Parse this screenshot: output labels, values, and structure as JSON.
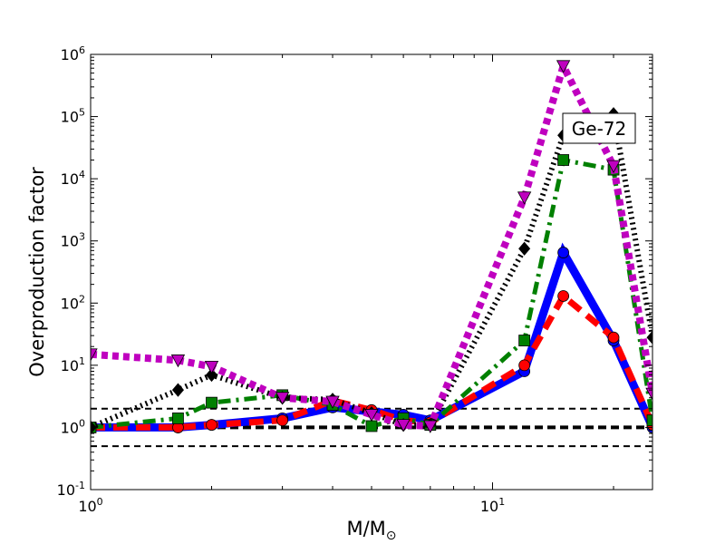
{
  "chart_data": {
    "type": "line",
    "title": "",
    "xlabel": "M/M",
    "xlabel_sub": "⊙",
    "ylabel": "Overproduction factor",
    "xscale": "log",
    "yscale": "log",
    "xlim": [
      1,
      25
    ],
    "ylim": [
      0.1,
      1000000
    ],
    "grid": false,
    "legend": "none",
    "x_ticks": [
      {
        "value": 1,
        "base": "10",
        "exp": "0"
      },
      {
        "value": 10,
        "base": "10",
        "exp": "1"
      }
    ],
    "y_ticks": [
      {
        "value": 0.1,
        "base": "10",
        "exp": "-1"
      },
      {
        "value": 1,
        "base": "10",
        "exp": "0"
      },
      {
        "value": 10,
        "base": "10",
        "exp": "1"
      },
      {
        "value": 100,
        "base": "10",
        "exp": "2"
      },
      {
        "value": 1000,
        "base": "10",
        "exp": "3"
      },
      {
        "value": 10000,
        "base": "10",
        "exp": "4"
      },
      {
        "value": 100000,
        "base": "10",
        "exp": "5"
      },
      {
        "value": 1000000,
        "base": "10",
        "exp": "6"
      }
    ],
    "annotation": "Ge-72",
    "reference_lines": [
      {
        "y": 2,
        "style": "thin-dashed",
        "color": "#000000"
      },
      {
        "y": 1,
        "style": "thick-dashed",
        "color": "#000000"
      },
      {
        "y": 0.5,
        "style": "thin-dashed",
        "color": "#000000"
      }
    ],
    "series": [
      {
        "color": "#0000ff",
        "style": "solid",
        "marker": "circle",
        "x": [
          1,
          1.65,
          2,
          3,
          4,
          5,
          6,
          7,
          12,
          15,
          20,
          25
        ],
        "y": [
          1.0,
          1.0,
          1.1,
          1.4,
          2.1,
          1.8,
          1.6,
          1.3,
          8,
          650,
          25,
          1.0
        ]
      },
      {
        "color": "#ff0000",
        "style": "dashed",
        "marker": "circle",
        "x": [
          1,
          1.65,
          2,
          3,
          4,
          5,
          6,
          7,
          12,
          15,
          20,
          25
        ],
        "y": [
          1.0,
          1.0,
          1.1,
          1.3,
          2.7,
          1.9,
          1.3,
          1.2,
          10,
          130,
          28,
          1.1
        ]
      },
      {
        "color": "#008000",
        "style": "dashdot",
        "marker": "square",
        "x": [
          1,
          1.65,
          2,
          3,
          4,
          5,
          6,
          7,
          12,
          15,
          20,
          25
        ],
        "y": [
          1.0,
          1.4,
          2.5,
          3.3,
          2.3,
          1.05,
          1.4,
          1.1,
          25,
          20000,
          14000,
          1.3
        ]
      },
      {
        "color": "#000000",
        "style": "dotted",
        "marker": "diamond",
        "x": [
          1,
          1.65,
          2,
          3,
          4,
          5,
          6,
          7,
          12,
          15,
          20,
          25
        ],
        "y": [
          1.0,
          4.0,
          7.0,
          3.0,
          2.8,
          1.7,
          1.1,
          1.1,
          750,
          50000,
          110000,
          28
        ]
      },
      {
        "color": "#bf00bf",
        "style": "thick-dotted",
        "marker": "triangle-down",
        "x": [
          1,
          1.65,
          2,
          3,
          4,
          5,
          6,
          7,
          12,
          15,
          20,
          25
        ],
        "y": [
          15,
          12,
          9.5,
          3.0,
          2.6,
          1.6,
          1.1,
          1.05,
          5000,
          650000,
          16000,
          3.5
        ]
      }
    ]
  }
}
